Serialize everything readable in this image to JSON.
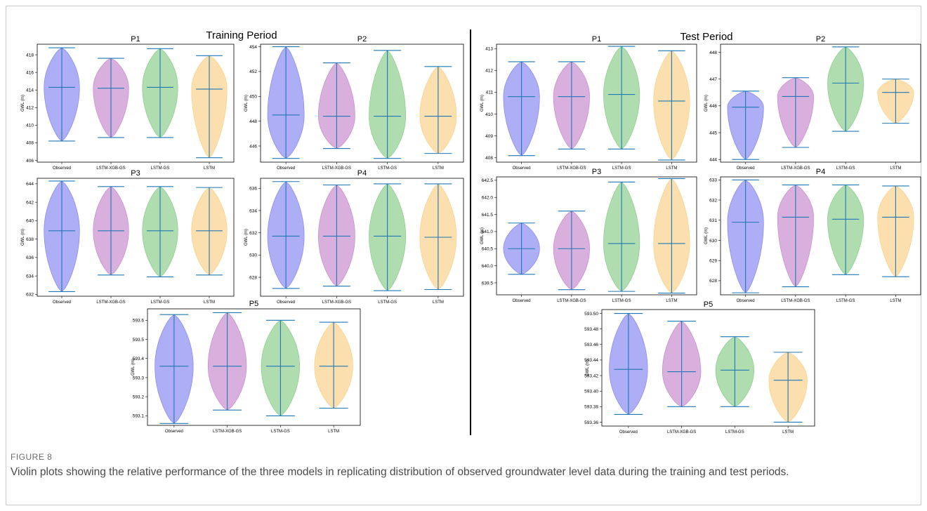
{
  "figure": {
    "label": "FIGURE 8",
    "caption": "Violin plots showing the relative performance of the three models in replicating distribution of observed groundwater level data during the training and test periods."
  },
  "panels": {
    "training_title": "Training Period",
    "test_title": "Test Period"
  },
  "colors": {
    "Observed": "#8c8cf2",
    "LSTM-XGB-GS": "#c98fcf",
    "LSTM-GS": "#8fcf8f",
    "LSTM": "#fbd28c",
    "line": "#1f77b4"
  },
  "chart_data": [
    {
      "type": "violin",
      "panel": "Training Period",
      "title": "P1",
      "ylabel": "GWL (m)",
      "categories": [
        "Observed",
        "LSTM-XGB-GS",
        "LSTM-GS",
        "LSTM"
      ],
      "ylim": [
        405.8,
        419.2
      ],
      "yticks": [
        406,
        408,
        410,
        412,
        414,
        416,
        418
      ],
      "series": [
        {
          "name": "Observed",
          "min": 408.2,
          "median": 414.3,
          "max": 418.8
        },
        {
          "name": "LSTM-XGB-GS",
          "min": 408.6,
          "median": 414.2,
          "max": 417.6
        },
        {
          "name": "LSTM-GS",
          "min": 408.6,
          "median": 414.3,
          "max": 418.7
        },
        {
          "name": "LSTM",
          "min": 406.3,
          "median": 414.1,
          "max": 417.9
        }
      ]
    },
    {
      "type": "violin",
      "panel": "Training Period",
      "title": "P2",
      "ylabel": "GWL (m)",
      "categories": [
        "Observed",
        "LSTM-XGB-GS",
        "LSTM-GS",
        "LSTM"
      ],
      "ylim": [
        444.7,
        454.2
      ],
      "yticks": [
        446,
        448,
        450,
        452,
        454
      ],
      "series": [
        {
          "name": "Observed",
          "min": 445.0,
          "median": 448.5,
          "max": 454.0
        },
        {
          "name": "LSTM-XGB-GS",
          "min": 445.8,
          "median": 448.4,
          "max": 452.7
        },
        {
          "name": "LSTM-GS",
          "min": 445.0,
          "median": 448.4,
          "max": 453.7
        },
        {
          "name": "LSTM",
          "min": 445.4,
          "median": 448.4,
          "max": 452.4
        }
      ]
    },
    {
      "type": "violin",
      "panel": "Training Period",
      "title": "P3",
      "ylabel": "GWL (m)",
      "categories": [
        "Observed",
        "LSTM-XGB-GS",
        "LSTM-GS",
        "LSTM"
      ],
      "ylim": [
        631.8,
        644.6
      ],
      "yticks": [
        632,
        634,
        636,
        638,
        640,
        642,
        644
      ],
      "series": [
        {
          "name": "Observed",
          "min": 632.3,
          "median": 638.9,
          "max": 644.3
        },
        {
          "name": "LSTM-XGB-GS",
          "min": 634.1,
          "median": 638.9,
          "max": 643.7
        },
        {
          "name": "LSTM-GS",
          "min": 633.9,
          "median": 638.9,
          "max": 643.7
        },
        {
          "name": "LSTM",
          "min": 634.1,
          "median": 638.9,
          "max": 643.6
        }
      ]
    },
    {
      "type": "violin",
      "panel": "Training Period",
      "title": "P4",
      "ylabel": "GWL (m)",
      "categories": [
        "Observed",
        "LSTM-XGB-GS",
        "LSTM-GS",
        "LSTM"
      ],
      "ylim": [
        626.3,
        636.9
      ],
      "yticks": [
        628,
        630,
        632,
        634,
        636
      ],
      "series": [
        {
          "name": "Observed",
          "min": 627.0,
          "median": 631.7,
          "max": 636.6
        },
        {
          "name": "LSTM-XGB-GS",
          "min": 627.2,
          "median": 631.7,
          "max": 636.3
        },
        {
          "name": "LSTM-GS",
          "min": 626.8,
          "median": 631.7,
          "max": 636.4
        },
        {
          "name": "LSTM",
          "min": 626.9,
          "median": 631.6,
          "max": 636.4
        }
      ]
    },
    {
      "type": "violin",
      "panel": "Training Period",
      "title": "P5",
      "ylabel": "GWL (m)",
      "categories": [
        "Observed",
        "LSTM-XGB-GS",
        "LSTM-GS",
        "LSTM"
      ],
      "ylim": [
        593.05,
        593.66
      ],
      "yticks": [
        593.1,
        593.2,
        593.3,
        593.4,
        593.5,
        593.6
      ],
      "series": [
        {
          "name": "Observed",
          "min": 593.06,
          "median": 593.36,
          "max": 593.63
        },
        {
          "name": "LSTM-XGB-GS",
          "min": 593.13,
          "median": 593.36,
          "max": 593.64
        },
        {
          "name": "LSTM-GS",
          "min": 593.1,
          "median": 593.36,
          "max": 593.6
        },
        {
          "name": "LSTM",
          "min": 593.14,
          "median": 593.36,
          "max": 593.59
        }
      ]
    },
    {
      "type": "violin",
      "panel": "Test Period",
      "title": "P1",
      "ylabel": "GWL (m)",
      "categories": [
        "Observed",
        "LSTM-XGB-GS",
        "LSTM-GS",
        "LSTM"
      ],
      "ylim": [
        407.8,
        413.2
      ],
      "yticks": [
        408,
        409,
        410,
        411,
        412,
        413
      ],
      "series": [
        {
          "name": "Observed",
          "min": 408.1,
          "median": 410.8,
          "max": 412.4
        },
        {
          "name": "LSTM-XGB-GS",
          "min": 408.4,
          "median": 410.8,
          "max": 412.4
        },
        {
          "name": "LSTM-GS",
          "min": 408.4,
          "median": 410.9,
          "max": 413.1
        },
        {
          "name": "LSTM",
          "min": 407.9,
          "median": 410.6,
          "max": 412.9
        }
      ]
    },
    {
      "type": "violin",
      "panel": "Test Period",
      "title": "P2",
      "ylabel": "GWL (m)",
      "categories": [
        "Observed",
        "LSTM-XGB-GS",
        "LSTM-GS",
        "LSTM"
      ],
      "ylim": [
        443.9,
        448.3
      ],
      "yticks": [
        444,
        445,
        446,
        447,
        448
      ],
      "series": [
        {
          "name": "Observed",
          "min": 444.0,
          "median": 445.95,
          "max": 446.55
        },
        {
          "name": "LSTM-XGB-GS",
          "min": 444.45,
          "median": 446.35,
          "max": 447.05
        },
        {
          "name": "LSTM-GS",
          "min": 445.05,
          "median": 446.85,
          "max": 448.2
        },
        {
          "name": "LSTM",
          "min": 445.35,
          "median": 446.5,
          "max": 447.0
        }
      ]
    },
    {
      "type": "violin",
      "panel": "Test Period",
      "title": "P3",
      "ylabel": "GWL (m)",
      "categories": [
        "Observed",
        "LSTM-XGB-GS",
        "LSTM-GS",
        "LSTM"
      ],
      "ylim": [
        639.15,
        642.6
      ],
      "yticks": [
        639.5,
        640.0,
        640.5,
        641.0,
        641.5,
        642.0,
        642.5
      ],
      "series": [
        {
          "name": "Observed",
          "min": 639.75,
          "median": 640.5,
          "max": 641.25
        },
        {
          "name": "LSTM-XGB-GS",
          "min": 639.3,
          "median": 640.5,
          "max": 641.6
        },
        {
          "name": "LSTM-GS",
          "min": 639.25,
          "median": 640.65,
          "max": 642.45
        },
        {
          "name": "LSTM",
          "min": 639.2,
          "median": 640.65,
          "max": 642.55
        }
      ]
    },
    {
      "type": "violin",
      "panel": "Test Period",
      "title": "P4",
      "ylabel": "GWL (m)",
      "categories": [
        "Observed",
        "LSTM-XGB-GS",
        "LSTM-GS",
        "LSTM"
      ],
      "ylim": [
        627.3,
        633.15
      ],
      "yticks": [
        628,
        629,
        630,
        631,
        632,
        633
      ],
      "series": [
        {
          "name": "Observed",
          "min": 627.4,
          "median": 630.9,
          "max": 633.0
        },
        {
          "name": "LSTM-XGB-GS",
          "min": 627.7,
          "median": 631.15,
          "max": 632.75
        },
        {
          "name": "LSTM-GS",
          "min": 628.3,
          "median": 631.05,
          "max": 632.75
        },
        {
          "name": "LSTM",
          "min": 628.2,
          "median": 631.15,
          "max": 632.7
        }
      ]
    },
    {
      "type": "violin",
      "panel": "Test Period",
      "title": "P5",
      "ylabel": "GWL (m)",
      "categories": [
        "Observed",
        "LSTM-XGB-GS",
        "LSTM-GS",
        "LSTM"
      ],
      "ylim": [
        593.355,
        593.505
      ],
      "yticks": [
        593.36,
        593.38,
        593.4,
        593.42,
        593.44,
        593.46,
        593.48,
        593.5
      ],
      "series": [
        {
          "name": "Observed",
          "min": 593.37,
          "median": 593.428,
          "max": 593.5
        },
        {
          "name": "LSTM-XGB-GS",
          "min": 593.38,
          "median": 593.425,
          "max": 593.49
        },
        {
          "name": "LSTM-GS",
          "min": 593.38,
          "median": 593.427,
          "max": 593.47
        },
        {
          "name": "LSTM",
          "min": 593.36,
          "median": 593.414,
          "max": 593.45
        }
      ]
    }
  ]
}
